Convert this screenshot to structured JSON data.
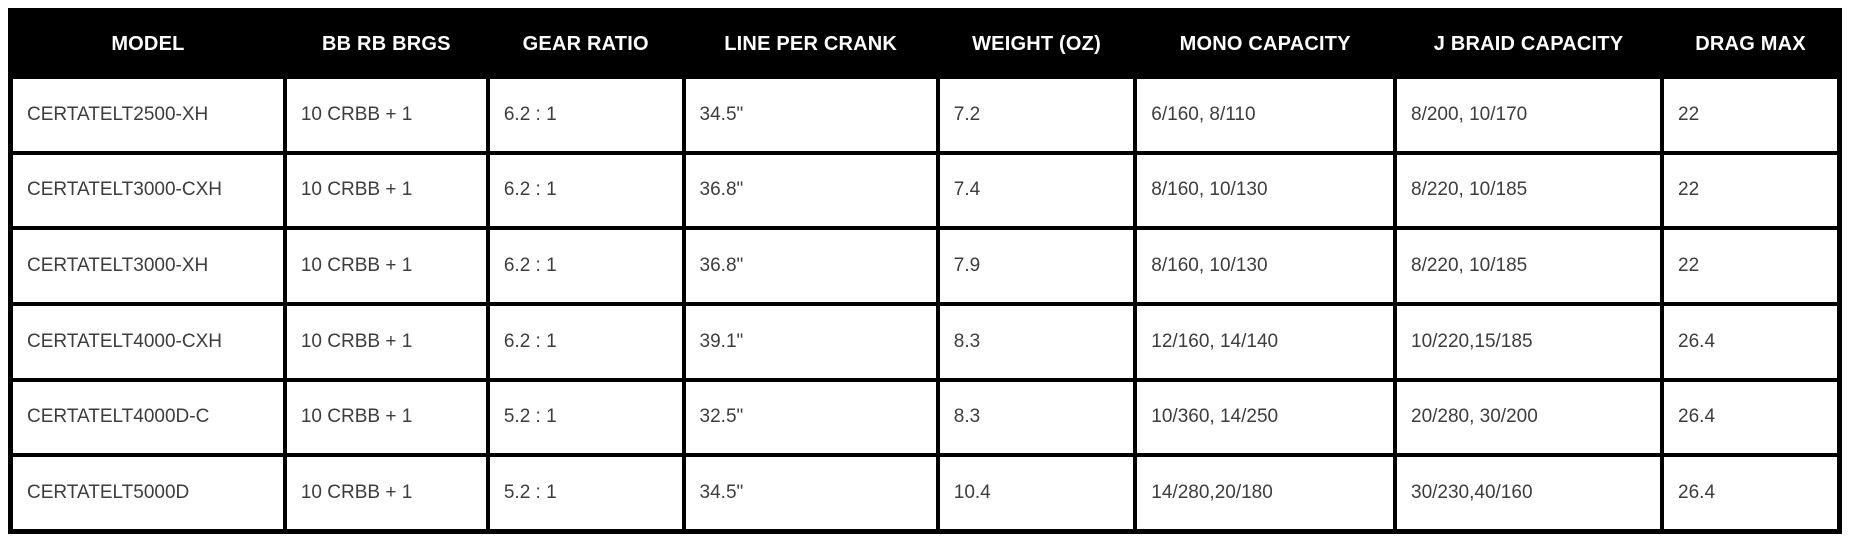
{
  "colors": {
    "header_bg": "#000000",
    "header_text": "#ffffff",
    "border": "#000000",
    "cell_bg": "#ffffff",
    "cell_text": "#3d3d3d"
  },
  "table": {
    "columns": [
      "MODEL",
      "BB RB BRGS",
      "GEAR RATIO",
      "LINE PER CRANK",
      "WEIGHT (OZ)",
      "MONO CAPACITY",
      "J BRAID CAPACITY",
      "DRAG MAX"
    ],
    "rows": [
      [
        "CERTATELT2500-XH",
        "10 CRBB + 1",
        "6.2 : 1",
        "34.5\"",
        "7.2",
        "6/160, 8/110",
        "8/200, 10/170",
        "22"
      ],
      [
        "CERTATELT3000-CXH",
        "10 CRBB + 1",
        "6.2 : 1",
        "36.8\"",
        "7.4",
        "8/160, 10/130",
        "8/220, 10/185",
        "22"
      ],
      [
        "CERTATELT3000-XH",
        "10 CRBB + 1",
        "6.2 : 1",
        "36.8\"",
        "7.9",
        "8/160, 10/130",
        "8/220, 10/185",
        "22"
      ],
      [
        "CERTATELT4000-CXH",
        "10 CRBB + 1",
        "6.2 : 1",
        "39.1\"",
        "8.3",
        "12/160, 14/140",
        "10/220,15/185",
        "26.4"
      ],
      [
        "CERTATELT4000D-C",
        "10 CRBB + 1",
        "5.2 : 1",
        "32.5\"",
        "8.3",
        "10/360, 14/250",
        "20/280, 30/200",
        "26.4"
      ],
      [
        "CERTATELT5000D",
        "10 CRBB + 1",
        "5.2 : 1",
        "34.5\"",
        "10.4",
        "14/280,20/180",
        "30/230,40/160",
        "26.4"
      ]
    ],
    "column_keys": [
      "model",
      "bb-rb-brgs",
      "gear-ratio",
      "line-per-crank",
      "weight-oz",
      "mono-capacity",
      "j-braid-capacity",
      "drag-max"
    ],
    "column_widths_pct": [
      15.0,
      11.1,
      10.7,
      13.9,
      10.8,
      14.2,
      14.6,
      9.7
    ]
  }
}
